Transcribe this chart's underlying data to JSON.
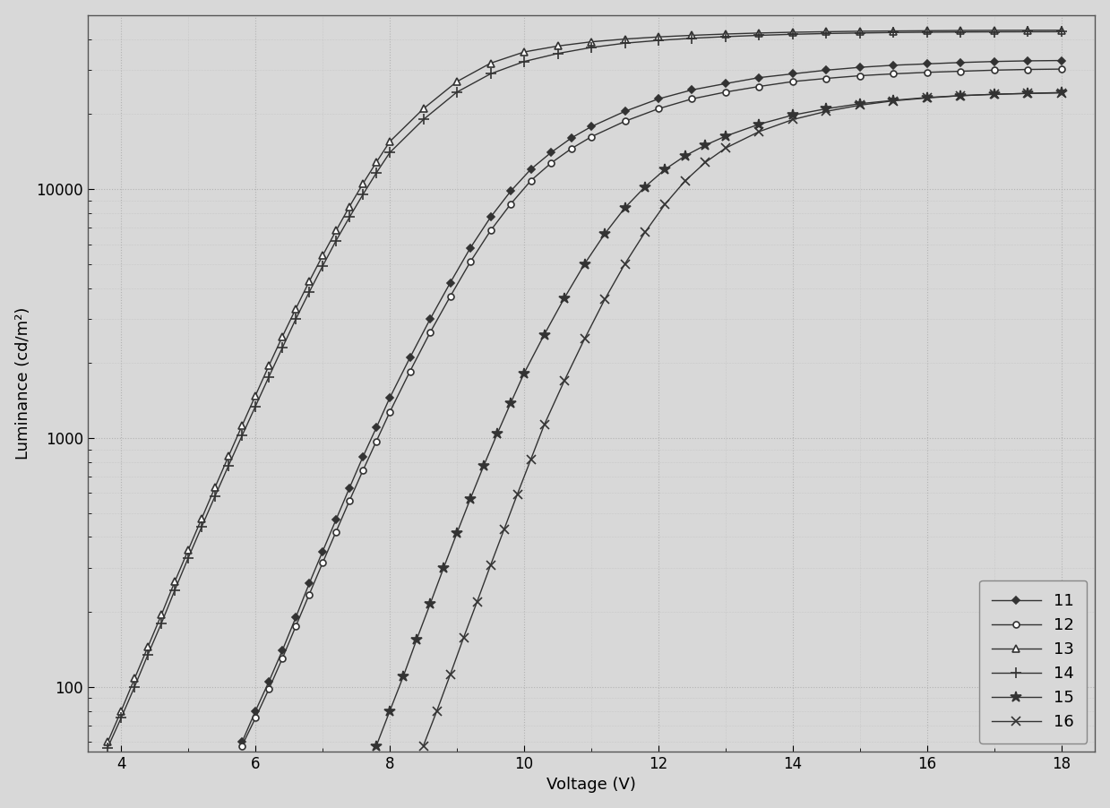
{
  "title": "",
  "xlabel": "Voltage (V)",
  "ylabel": "Luminance (cd/m²)",
  "xlim": [
    3.5,
    18.5
  ],
  "ylim_log": [
    55,
    50000
  ],
  "xticks": [
    4,
    6,
    8,
    10,
    12,
    14,
    16,
    18
  ],
  "yticks": [
    100,
    1000,
    10000
  ],
  "background_color": "#d8d8d8",
  "grid_color": "#b0b0b0",
  "series": [
    {
      "label": "11",
      "marker": "D",
      "markersize": 5,
      "markerfacecolor": "#333333",
      "markeredgecolor": "#333333",
      "color": "#333333",
      "x": [
        5.8,
        6.0,
        6.2,
        6.4,
        6.6,
        6.8,
        7.0,
        7.2,
        7.4,
        7.6,
        7.8,
        8.0,
        8.3,
        8.6,
        8.9,
        9.2,
        9.5,
        9.8,
        10.1,
        10.4,
        10.7,
        11.0,
        11.5,
        12.0,
        12.5,
        13.0,
        13.5,
        14.0,
        14.5,
        15.0,
        15.5,
        16.0,
        16.5,
        17.0,
        17.5,
        18.0
      ],
      "y": [
        60,
        80,
        105,
        140,
        190,
        260,
        350,
        470,
        630,
        840,
        1100,
        1450,
        2100,
        3000,
        4200,
        5800,
        7700,
        9800,
        12000,
        14000,
        16000,
        17800,
        20500,
        23000,
        25000,
        26500,
        28000,
        29000,
        30000,
        30800,
        31400,
        31800,
        32200,
        32500,
        32700,
        32800
      ]
    },
    {
      "label": "12",
      "marker": "o",
      "markersize": 5,
      "markerfacecolor": "white",
      "markeredgecolor": "#333333",
      "color": "#333333",
      "x": [
        5.8,
        6.0,
        6.2,
        6.4,
        6.6,
        6.8,
        7.0,
        7.2,
        7.4,
        7.6,
        7.8,
        8.0,
        8.3,
        8.6,
        8.9,
        9.2,
        9.5,
        9.8,
        10.1,
        10.4,
        10.7,
        11.0,
        11.5,
        12.0,
        12.5,
        13.0,
        13.5,
        14.0,
        14.5,
        15.0,
        15.5,
        16.0,
        16.5,
        17.0,
        17.5,
        18.0
      ],
      "y": [
        58,
        75,
        98,
        130,
        175,
        235,
        315,
        420,
        560,
        740,
        970,
        1270,
        1850,
        2650,
        3700,
        5100,
        6800,
        8700,
        10800,
        12700,
        14500,
        16200,
        18700,
        21000,
        23000,
        24500,
        25800,
        27000,
        27800,
        28500,
        29000,
        29400,
        29700,
        30000,
        30200,
        30300
      ]
    },
    {
      "label": "13",
      "marker": "^",
      "markersize": 6,
      "markerfacecolor": "white",
      "markeredgecolor": "#333333",
      "color": "#333333",
      "x": [
        3.8,
        4.0,
        4.2,
        4.4,
        4.6,
        4.8,
        5.0,
        5.2,
        5.4,
        5.6,
        5.8,
        6.0,
        6.2,
        6.4,
        6.6,
        6.8,
        7.0,
        7.2,
        7.4,
        7.6,
        7.8,
        8.0,
        8.5,
        9.0,
        9.5,
        10.0,
        10.5,
        11.0,
        11.5,
        12.0,
        12.5,
        13.0,
        13.5,
        14.0,
        14.5,
        15.0,
        15.5,
        16.0,
        16.5,
        17.0,
        17.5,
        18.0
      ],
      "y": [
        60,
        80,
        108,
        145,
        195,
        265,
        355,
        475,
        635,
        845,
        1120,
        1480,
        1950,
        2550,
        3300,
        4250,
        5400,
        6800,
        8500,
        10500,
        12800,
        15500,
        21000,
        27000,
        32000,
        35500,
        37500,
        39000,
        40000,
        40800,
        41400,
        41900,
        42300,
        42600,
        42800,
        43000,
        43100,
        43200,
        43300,
        43350,
        43380,
        43400
      ]
    },
    {
      "label": "14",
      "marker": "+",
      "markersize": 8,
      "markerfacecolor": "#333333",
      "markeredgecolor": "#333333",
      "color": "#333333",
      "x": [
        3.8,
        4.0,
        4.2,
        4.4,
        4.6,
        4.8,
        5.0,
        5.2,
        5.4,
        5.6,
        5.8,
        6.0,
        6.2,
        6.4,
        6.6,
        6.8,
        7.0,
        7.2,
        7.4,
        7.6,
        7.8,
        8.0,
        8.5,
        9.0,
        9.5,
        10.0,
        10.5,
        11.0,
        11.5,
        12.0,
        12.5,
        13.0,
        13.5,
        14.0,
        14.5,
        15.0,
        15.5,
        16.0,
        16.5,
        17.0,
        17.5,
        18.0
      ],
      "y": [
        57,
        75,
        100,
        135,
        180,
        245,
        330,
        440,
        585,
        775,
        1020,
        1340,
        1760,
        2300,
        3000,
        3850,
        4900,
        6200,
        7700,
        9500,
        11600,
        14000,
        19000,
        24500,
        29000,
        32500,
        35000,
        37000,
        38500,
        39500,
        40300,
        40900,
        41400,
        41800,
        42100,
        42300,
        42500,
        42600,
        42700,
        42750,
        42780,
        42800
      ]
    },
    {
      "label": "15",
      "marker": "*",
      "markersize": 8,
      "markerfacecolor": "#333333",
      "markeredgecolor": "#333333",
      "color": "#333333",
      "x": [
        7.8,
        8.0,
        8.2,
        8.4,
        8.6,
        8.8,
        9.0,
        9.2,
        9.4,
        9.6,
        9.8,
        10.0,
        10.3,
        10.6,
        10.9,
        11.2,
        11.5,
        11.8,
        12.1,
        12.4,
        12.7,
        13.0,
        13.5,
        14.0,
        14.5,
        15.0,
        15.5,
        16.0,
        16.5,
        17.0,
        17.5,
        18.0
      ],
      "y": [
        58,
        80,
        110,
        155,
        215,
        300,
        415,
        570,
        775,
        1040,
        1380,
        1820,
        2600,
        3650,
        5000,
        6600,
        8400,
        10200,
        12000,
        13600,
        15000,
        16300,
        18200,
        19800,
        21000,
        22000,
        22700,
        23300,
        23700,
        24000,
        24200,
        24400
      ]
    },
    {
      "label": "16",
      "marker": "x",
      "markersize": 7,
      "markerfacecolor": "#333333",
      "markeredgecolor": "#333333",
      "color": "#333333",
      "x": [
        8.5,
        8.7,
        8.9,
        9.1,
        9.3,
        9.5,
        9.7,
        9.9,
        10.1,
        10.3,
        10.6,
        10.9,
        11.2,
        11.5,
        11.8,
        12.1,
        12.4,
        12.7,
        13.0,
        13.5,
        14.0,
        14.5,
        15.0,
        15.5,
        16.0,
        16.5,
        17.0,
        17.5,
        18.0
      ],
      "y": [
        58,
        80,
        112,
        158,
        220,
        308,
        428,
        595,
        820,
        1130,
        1700,
        2500,
        3600,
        5000,
        6700,
        8700,
        10800,
        12800,
        14600,
        17000,
        19000,
        20500,
        21700,
        22600,
        23200,
        23700,
        24000,
        24200,
        24300
      ]
    }
  ],
  "legend_loc": "lower right",
  "fontsize": 13,
  "tick_fontsize": 12
}
